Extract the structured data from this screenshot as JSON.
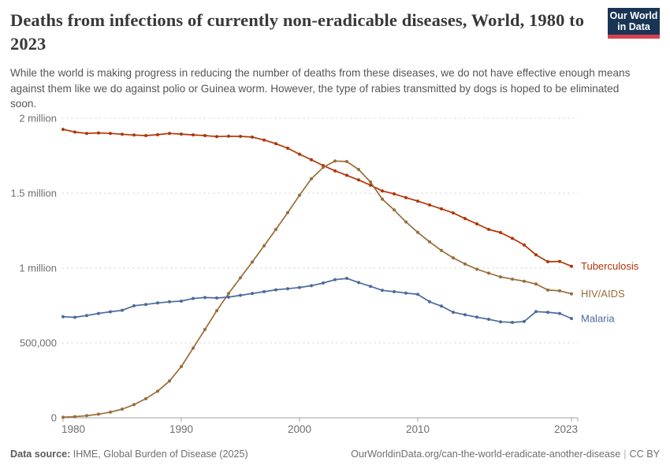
{
  "header": {
    "title": "Deaths from infections of currently non-eradicable diseases, World, 1980 to 2023",
    "subtitle": "While the world is making progress in reducing the number of deaths from these diseases, we do not have effective enough means against them like we do against polio or Guinea worm. However, the type of rabies transmitted by dogs is hoped to be eliminated soon.",
    "logo": {
      "line1": "Our World",
      "line2": "in Data",
      "bg_color": "#1a3455",
      "accent_color": "#d8414e"
    }
  },
  "footer": {
    "source_label": "Data source:",
    "source_value": "IHME, Global Burden of Disease (2025)",
    "url": "OurWorldinData.org/can-the-world-eradicate-another-disease",
    "separator": "|",
    "license": "CC BY"
  },
  "chart_data": {
    "type": "line",
    "title": "Deaths from infections of currently non-eradicable diseases",
    "entity": "World",
    "xlim": [
      1980,
      2023
    ],
    "ylim": [
      0,
      2000000
    ],
    "grid": "horizontal-dashed",
    "legend_position": "end-of-line-labels",
    "x_ticks": [
      1980,
      1990,
      2000,
      2010,
      2023
    ],
    "y_ticks": [
      {
        "value": 0,
        "label": "0"
      },
      {
        "value": 500000,
        "label": "500,000"
      },
      {
        "value": 1000000,
        "label": "1 million"
      },
      {
        "value": 1500000,
        "label": "1.5 million"
      },
      {
        "value": 2000000,
        "label": "2 million"
      }
    ],
    "x": [
      1980,
      1981,
      1982,
      1983,
      1984,
      1985,
      1986,
      1987,
      1988,
      1989,
      1990,
      1991,
      1992,
      1993,
      1994,
      1995,
      1996,
      1997,
      1998,
      1999,
      2000,
      2001,
      2002,
      2003,
      2004,
      2005,
      2006,
      2007,
      2008,
      2009,
      2010,
      2011,
      2012,
      2013,
      2014,
      2015,
      2016,
      2017,
      2018,
      2019,
      2020,
      2021,
      2022,
      2023
    ],
    "series": [
      {
        "name": "Tuberculosis",
        "color": "#B13507",
        "values": [
          1926000,
          1908000,
          1899000,
          1902000,
          1899000,
          1893000,
          1888000,
          1884000,
          1890000,
          1899000,
          1894000,
          1889000,
          1884000,
          1878000,
          1880000,
          1879000,
          1874000,
          1855000,
          1830000,
          1800000,
          1760000,
          1723000,
          1684000,
          1649000,
          1619000,
          1588000,
          1553000,
          1515000,
          1495000,
          1470000,
          1447000,
          1421000,
          1395000,
          1368000,
          1330000,
          1295000,
          1258000,
          1237000,
          1198000,
          1154000,
          1088000,
          1042000,
          1044000,
          1012000
        ]
      },
      {
        "name": "HIV/AIDS",
        "color": "#996D39",
        "values": [
          4000,
          8000,
          14000,
          24000,
          38000,
          58000,
          88000,
          128000,
          178000,
          246000,
          342000,
          465000,
          590000,
          715000,
          830000,
          935000,
          1040000,
          1148000,
          1258000,
          1370000,
          1486000,
          1596000,
          1672000,
          1714000,
          1711000,
          1658000,
          1574000,
          1460000,
          1388000,
          1308000,
          1238000,
          1175000,
          1117000,
          1068000,
          1027000,
          992000,
          966000,
          941000,
          926000,
          912000,
          893000,
          853000,
          848000,
          828000
        ]
      },
      {
        "name": "Malaria",
        "color": "#4C6A9C",
        "values": [
          675000,
          671000,
          683000,
          697000,
          708000,
          718000,
          748000,
          757000,
          767000,
          775000,
          779000,
          797000,
          803000,
          800000,
          806000,
          818000,
          830000,
          842000,
          855000,
          862000,
          870000,
          882000,
          900000,
          922000,
          931000,
          903000,
          878000,
          851000,
          842000,
          833000,
          824000,
          775000,
          746000,
          705000,
          688000,
          672000,
          658000,
          641000,
          637000,
          643000,
          709000,
          705000,
          697000,
          663000
        ]
      }
    ],
    "style": {
      "grid_color": "#dddddd",
      "axis_color": "#a3a3a3",
      "tick_label_color": "#6e6e6e"
    }
  }
}
